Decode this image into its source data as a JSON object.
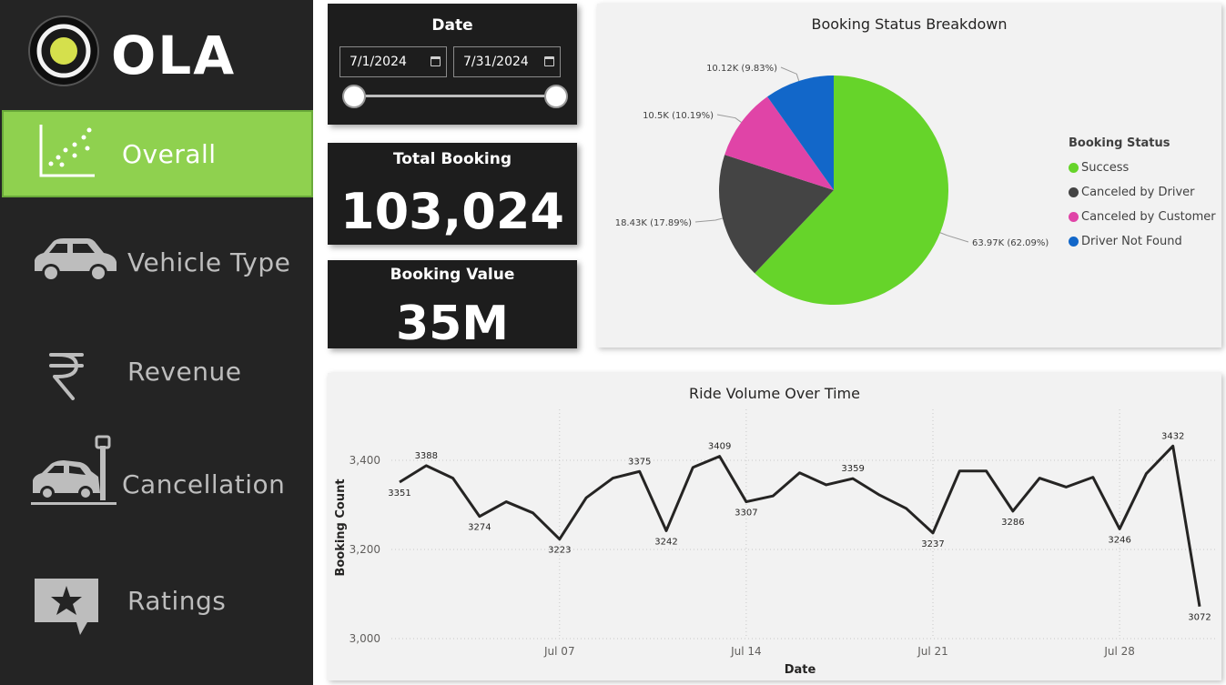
{
  "sidebar": {
    "logo_text": "OLA",
    "items": [
      {
        "label": "Overall",
        "icon": "scatter-chart-icon",
        "active": true
      },
      {
        "label": "Vehicle Type",
        "icon": "car-icon",
        "active": false
      },
      {
        "label": "Revenue",
        "icon": "rupee-icon",
        "active": false
      },
      {
        "label": "Cancellation",
        "icon": "car-crash-icon",
        "active": false
      },
      {
        "label": "Ratings",
        "icon": "star-message-icon",
        "active": false
      }
    ]
  },
  "date_filter": {
    "title": "Date",
    "start": "7/1/2024",
    "end": "7/31/2024",
    "range_selected": [
      0,
      1
    ]
  },
  "kpis": {
    "total_booking": {
      "title": "Total Booking",
      "value": "103,024"
    },
    "booking_value": {
      "title": "Booking Value",
      "value": "35M"
    }
  },
  "colors": {
    "sidebar_bg": "#242424",
    "active_green": "#8fd14f",
    "card_dark": "#1d1d1d",
    "panel_light": "#f2f2f2",
    "success": "#66d42a",
    "canceled_driver": "#444444",
    "canceled_customer": "#e044a7",
    "driver_not_found": "#1267c9",
    "line": "#252423"
  },
  "chart_data": [
    {
      "type": "pie",
      "title": "Booking Status Breakdown",
      "legend_title": "Booking Status",
      "legend_position": "right",
      "slices": [
        {
          "label": "Success",
          "value": 63970,
          "display": "63.97K (62.09%)",
          "color": "#66d42a"
        },
        {
          "label": "Canceled by Driver",
          "value": 18430,
          "display": "18.43K (17.89%)",
          "color": "#444444"
        },
        {
          "label": "Canceled by Customer",
          "value": 10500,
          "display": "10.5K (10.19%)",
          "color": "#e044a7"
        },
        {
          "label": "Driver Not Found",
          "value": 10120,
          "display": "10.12K (9.83%)",
          "color": "#1267c9"
        }
      ]
    },
    {
      "type": "line",
      "title": "Ride Volume Over Time",
      "xlabel": "Date",
      "ylabel": "Booking Count",
      "ylim": [
        3000,
        3500
      ],
      "yticks": [
        3000,
        3200,
        3400
      ],
      "ytick_labels": [
        "3,000",
        "3,200",
        "3,400"
      ],
      "xlim": [
        1,
        31
      ],
      "xticks": [
        7,
        14,
        21,
        28
      ],
      "xtick_labels": [
        "Jul 07",
        "Jul 14",
        "Jul 21",
        "Jul 28"
      ],
      "grid": true,
      "x": [
        1,
        2,
        3,
        4,
        5,
        6,
        7,
        8,
        9,
        10,
        11,
        12,
        13,
        14,
        15,
        16,
        17,
        18,
        19,
        20,
        21,
        22,
        23,
        24,
        25,
        26,
        27,
        28,
        29,
        30,
        31
      ],
      "values": [
        3351,
        3388,
        3360,
        3274,
        3307,
        3282,
        3223,
        3316,
        3360,
        3375,
        3242,
        3384,
        3409,
        3307,
        3320,
        3372,
        3345,
        3359,
        3322,
        3292,
        3237,
        3376,
        3376,
        3286,
        3360,
        3340,
        3362,
        3246,
        3370,
        3432,
        3072
      ],
      "labeled_points": [
        1,
        2,
        4,
        7,
        10,
        11,
        13,
        14,
        18,
        21,
        24,
        28,
        30,
        31
      ]
    }
  ]
}
